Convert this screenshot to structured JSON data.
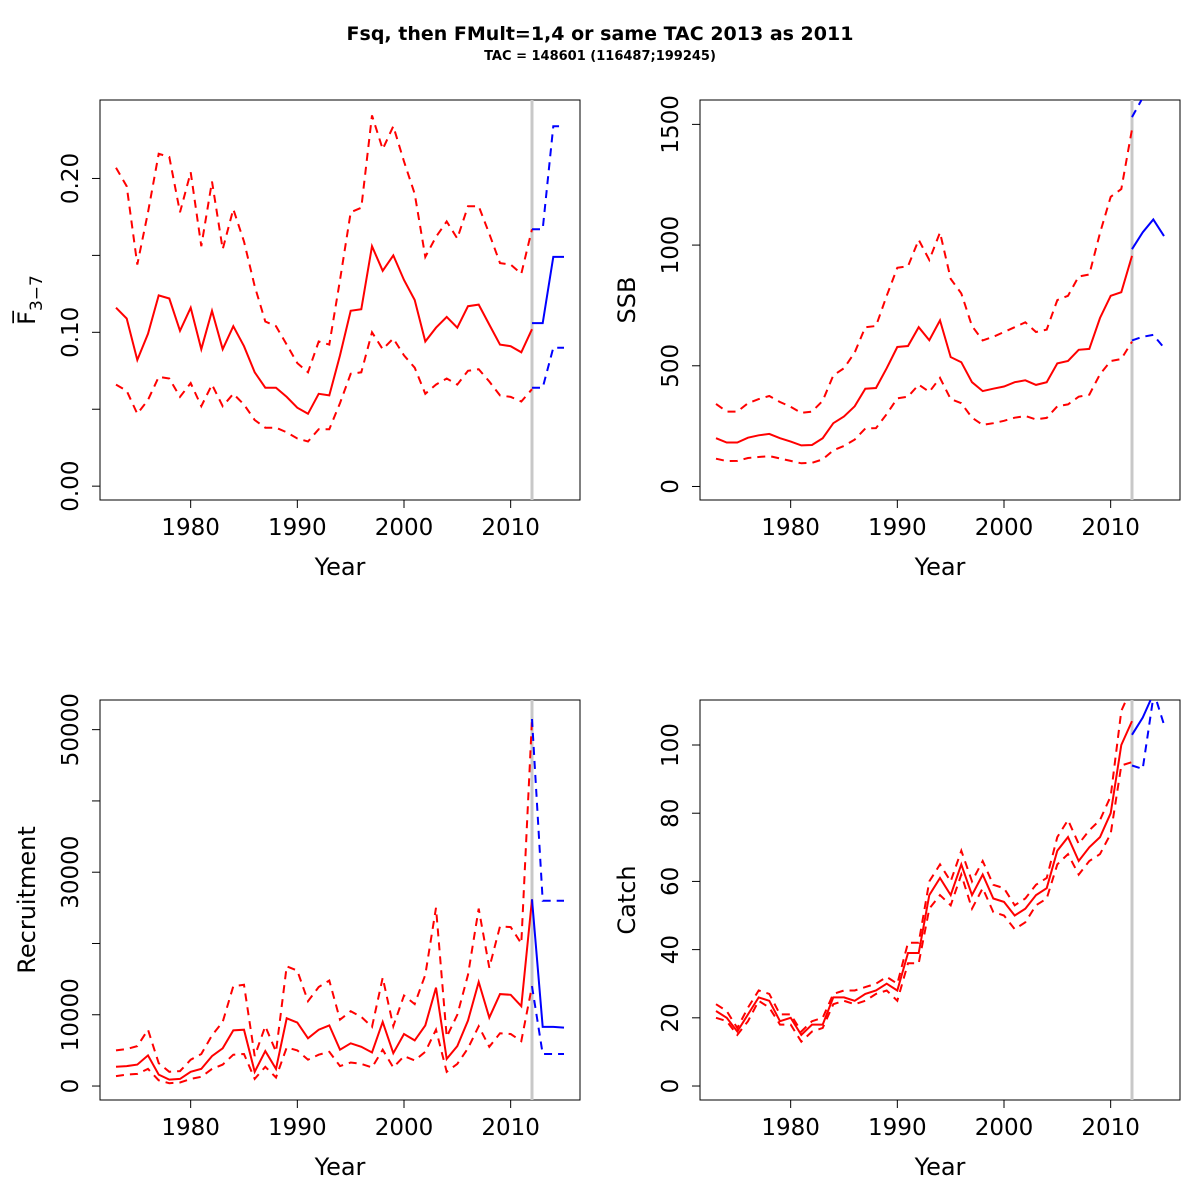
{
  "header": {
    "title": "Fsq, then FMult=1,4 or same TAC 2013 as 2011",
    "subtitle": "TAC = 148601 (116487;199245)"
  },
  "colors": {
    "history": "#ff0000",
    "forecast": "#0000ff",
    "divider": "#c8c8c8"
  },
  "chart_data": [
    {
      "type": "line",
      "id": "f",
      "xlabel": "Year",
      "ylabel": "F̅",
      "ylabel_sub": "3−7",
      "xlim": [
        1971.5,
        2016.5
      ],
      "ylim": [
        -0.009,
        0.251
      ],
      "xticks": [
        1980,
        1990,
        2000,
        2010
      ],
      "yticks": [
        0,
        0.05,
        0.1,
        0.15,
        0.2
      ],
      "ytick_labels": [
        "0.00",
        "",
        "0.10",
        "",
        "0.20"
      ],
      "divider_year": 2012,
      "x": [
        1973,
        1974,
        1975,
        1976,
        1977,
        1978,
        1979,
        1980,
        1981,
        1982,
        1983,
        1984,
        1985,
        1986,
        1987,
        1988,
        1989,
        1990,
        1991,
        1992,
        1993,
        1994,
        1995,
        1996,
        1997,
        1998,
        1999,
        2000,
        2001,
        2002,
        2003,
        2004,
        2005,
        2006,
        2007,
        2008,
        2009,
        2010,
        2011,
        2012
      ],
      "series": [
        {
          "kind": "estimate",
          "values": [
            0.116,
            0.109,
            0.082,
            0.099,
            0.124,
            0.122,
            0.101,
            0.116,
            0.089,
            0.114,
            0.089,
            0.104,
            0.091,
            0.074,
            0.064,
            0.064,
            0.058,
            0.051,
            0.047,
            0.06,
            0.059,
            0.085,
            0.114,
            0.115,
            0.156,
            0.14,
            0.15,
            0.134,
            0.121,
            0.094,
            0.103,
            0.11,
            0.103,
            0.117,
            0.118,
            0.105,
            0.092,
            0.091,
            0.087,
            0.102
          ]
        },
        {
          "kind": "upper",
          "values": [
            0.207,
            0.195,
            0.144,
            0.178,
            0.216,
            0.214,
            0.178,
            0.204,
            0.156,
            0.198,
            0.154,
            0.18,
            0.159,
            0.13,
            0.107,
            0.104,
            0.092,
            0.08,
            0.074,
            0.094,
            0.092,
            0.134,
            0.178,
            0.181,
            0.241,
            0.219,
            0.234,
            0.211,
            0.19,
            0.149,
            0.162,
            0.172,
            0.161,
            0.182,
            0.182,
            0.164,
            0.145,
            0.144,
            0.138,
            0.167
          ]
        },
        {
          "kind": "lower",
          "values": [
            0.066,
            0.062,
            0.047,
            0.056,
            0.071,
            0.07,
            0.058,
            0.067,
            0.052,
            0.066,
            0.052,
            0.06,
            0.053,
            0.043,
            0.038,
            0.038,
            0.035,
            0.031,
            0.029,
            0.037,
            0.037,
            0.054,
            0.073,
            0.074,
            0.1,
            0.089,
            0.096,
            0.085,
            0.077,
            0.06,
            0.066,
            0.07,
            0.066,
            0.075,
            0.076,
            0.068,
            0.059,
            0.058,
            0.055,
            0.063
          ]
        }
      ],
      "forecast": {
        "x": [
          2012,
          2013,
          2014,
          2015
        ],
        "series": [
          {
            "kind": "estimate",
            "values": [
              0.106,
              0.106,
              0.149,
              0.149
            ]
          },
          {
            "kind": "upper",
            "values": [
              0.167,
              0.167,
              0.234,
              0.234
            ]
          },
          {
            "kind": "lower",
            "values": [
              0.064,
              0.064,
              0.09,
              0.09
            ]
          }
        ]
      }
    },
    {
      "type": "line",
      "id": "ssb",
      "xlabel": "Year",
      "ylabel": "SSB",
      "xlim": [
        1971.5,
        2016.5
      ],
      "ylim": [
        -56,
        1601
      ],
      "xticks": [
        1980,
        1990,
        2000,
        2010
      ],
      "yticks": [
        0,
        500,
        1000,
        1500
      ],
      "ytick_labels": [
        "0",
        "500",
        "1000",
        "1500"
      ],
      "divider_year": 2012,
      "x": [
        1973,
        1974,
        1975,
        1976,
        1977,
        1978,
        1979,
        1980,
        1981,
        1982,
        1983,
        1984,
        1985,
        1986,
        1987,
        1988,
        1989,
        1990,
        1991,
        1992,
        1993,
        1994,
        1995,
        1996,
        1997,
        1998,
        1999,
        2000,
        2001,
        2002,
        2003,
        2004,
        2005,
        2006,
        2007,
        2008,
        2009,
        2010,
        2011,
        2012
      ],
      "series": [
        {
          "kind": "estimate",
          "values": [
            200,
            182,
            182,
            202,
            212,
            218,
            200,
            186,
            170,
            172,
            200,
            262,
            290,
            332,
            405,
            408,
            490,
            578,
            582,
            660,
            606,
            688,
            536,
            515,
            432,
            395,
            405,
            414,
            432,
            440,
            421,
            432,
            510,
            520,
            566,
            570,
            698,
            790,
            805,
            955
          ]
        },
        {
          "kind": "upper",
          "values": [
            342,
            310,
            310,
            345,
            362,
            375,
            350,
            330,
            305,
            310,
            355,
            460,
            490,
            555,
            660,
            665,
            790,
            906,
            912,
            1022,
            938,
            1052,
            860,
            800,
            665,
            605,
            620,
            640,
            660,
            680,
            640,
            650,
            772,
            790,
            870,
            878,
            1050,
            1200,
            1232,
            1480
          ]
        },
        {
          "kind": "lower",
          "values": [
            115,
            105,
            106,
            118,
            122,
            126,
            116,
            106,
            96,
            98,
            112,
            150,
            168,
            194,
            240,
            242,
            300,
            365,
            372,
            422,
            392,
            450,
            362,
            345,
            285,
            255,
            262,
            272,
            285,
            292,
            278,
            284,
            332,
            340,
            372,
            380,
            465,
            520,
            528,
            600
          ]
        }
      ],
      "forecast": {
        "x": [
          2012,
          2013,
          2014,
          2015
        ],
        "series": [
          {
            "kind": "estimate",
            "values": [
              983,
              1053,
              1106,
              1037
            ]
          },
          {
            "kind": "upper",
            "values": [
              1530,
              1610,
              1640,
              1640
            ]
          },
          {
            "kind": "lower",
            "values": [
              605,
              620,
              628,
              575
            ]
          }
        ]
      }
    },
    {
      "type": "line",
      "id": "recruitment",
      "xlabel": "Year",
      "ylabel": "Recruitment",
      "xlim": [
        1971.5,
        2016.5
      ],
      "ylim": [
        -1960,
        54160
      ],
      "xticks": [
        1980,
        1990,
        2000,
        2010
      ],
      "yticks": [
        0,
        10000,
        20000,
        30000,
        40000,
        50000
      ],
      "ytick_labels": [
        "0",
        "10000",
        "",
        "30000",
        "",
        "50000"
      ],
      "divider_year": 2012,
      "x": [
        1973,
        1974,
        1975,
        1976,
        1977,
        1978,
        1979,
        1980,
        1981,
        1982,
        1983,
        1984,
        1985,
        1986,
        1987,
        1988,
        1989,
        1990,
        1991,
        1992,
        1993,
        1994,
        1995,
        1996,
        1997,
        1998,
        1999,
        2000,
        2001,
        2002,
        2003,
        2004,
        2005,
        2006,
        2007,
        2008,
        2009,
        2010,
        2011,
        2012
      ],
      "series": [
        {
          "kind": "estimate",
          "values": [
            2700,
            2800,
            3000,
            4300,
            1600,
            900,
            1000,
            2000,
            2400,
            4200,
            5300,
            7800,
            7900,
            2000,
            4900,
            2400,
            9500,
            8900,
            6700,
            7900,
            8500,
            5100,
            6000,
            5500,
            4700,
            9000,
            4600,
            7300,
            6400,
            8500,
            13800,
            3800,
            5600,
            9200,
            14600,
            9600,
            12900,
            12800,
            11200,
            26200
          ]
        },
        {
          "kind": "upper",
          "values": [
            5000,
            5200,
            5600,
            7900,
            3200,
            2000,
            2100,
            3700,
            4500,
            7100,
            9000,
            14000,
            14200,
            4200,
            8400,
            4800,
            16800,
            16200,
            11900,
            13900,
            14800,
            9300,
            10500,
            9700,
            8300,
            15200,
            8400,
            12700,
            11500,
            15600,
            25000,
            6900,
            10000,
            15600,
            24900,
            16600,
            22400,
            22300,
            20000,
            51500
          ]
        },
        {
          "kind": "lower",
          "values": [
            1400,
            1600,
            1700,
            2400,
            800,
            400,
            500,
            1000,
            1300,
            2400,
            3000,
            4400,
            4500,
            1000,
            2700,
            1200,
            5400,
            5000,
            3700,
            4400,
            4800,
            2800,
            3300,
            3100,
            2600,
            5100,
            2600,
            4200,
            3600,
            4800,
            7900,
            2000,
            3100,
            5300,
            8400,
            5500,
            7400,
            7300,
            6300,
            14000
          ]
        }
      ],
      "forecast": {
        "x": [
          2012,
          2013,
          2014,
          2015
        ],
        "series": [
          {
            "kind": "estimate",
            "values": [
              26200,
              8300,
              8300,
              8200
            ]
          },
          {
            "kind": "upper",
            "values": [
              51500,
              26000,
              26000,
              26000
            ]
          },
          {
            "kind": "lower",
            "values": [
              14000,
              4500,
              4500,
              4500
            ]
          }
        ]
      }
    },
    {
      "type": "line",
      "id": "catch",
      "xlabel": "Year",
      "ylabel": "Catch",
      "xlim": [
        1971.5,
        2016.5
      ],
      "ylim": [
        -4.1,
        113.2
      ],
      "xticks": [
        1980,
        1990,
        2000,
        2010
      ],
      "yticks": [
        0,
        20,
        40,
        60,
        80,
        100
      ],
      "ytick_labels": [
        "0",
        "20",
        "40",
        "60",
        "80",
        "100"
      ],
      "divider_year": 2012,
      "x": [
        1973,
        1974,
        1975,
        1976,
        1977,
        1978,
        1979,
        1980,
        1981,
        1982,
        1983,
        1984,
        1985,
        1986,
        1987,
        1988,
        1989,
        1990,
        1991,
        1992,
        1993,
        1994,
        1995,
        1996,
        1997,
        1998,
        1999,
        2000,
        2001,
        2002,
        2003,
        2004,
        2005,
        2006,
        2007,
        2008,
        2009,
        2010,
        2011,
        2012
      ],
      "series": [
        {
          "kind": "estimate",
          "values": [
            22,
            20,
            16,
            21,
            26,
            25,
            19,
            20,
            15,
            18,
            18,
            26,
            26,
            25,
            27,
            28,
            30,
            28,
            39,
            39,
            56,
            61,
            56,
            65,
            56,
            62,
            55,
            54,
            50,
            52,
            56,
            58,
            69,
            73,
            66,
            70,
            73,
            80,
            100,
            107
          ]
        },
        {
          "kind": "upper",
          "values": [
            24,
            22,
            17,
            23,
            28,
            27,
            21,
            21,
            16,
            19,
            20,
            27,
            28,
            28,
            29,
            30,
            32,
            30,
            42,
            42,
            60,
            65,
            60,
            69,
            60,
            66,
            59,
            58,
            53,
            55,
            59,
            61,
            73,
            78,
            71,
            75,
            78,
            85,
            110,
            117
          ]
        },
        {
          "kind": "lower",
          "values": [
            20,
            19,
            15,
            19,
            25,
            23,
            18,
            18,
            13,
            16,
            17,
            24,
            25,
            24,
            25,
            27,
            28,
            25,
            36,
            36,
            52,
            56,
            53,
            62,
            52,
            58,
            51,
            50,
            46,
            48,
            53,
            55,
            65,
            68,
            62,
            66,
            68,
            74,
            94,
            95
          ]
        }
      ],
      "forecast": {
        "x": [
          2012,
          2013,
          2014,
          2015
        ],
        "series": [
          {
            "kind": "estimate",
            "values": [
              103,
              108,
              115,
              115
            ]
          },
          {
            "kind": "upper",
            "values": [
              114,
              118,
              116,
              106
            ]
          },
          {
            "kind": "lower",
            "values": [
              94,
              93,
              114,
              114
            ]
          }
        ]
      }
    }
  ]
}
